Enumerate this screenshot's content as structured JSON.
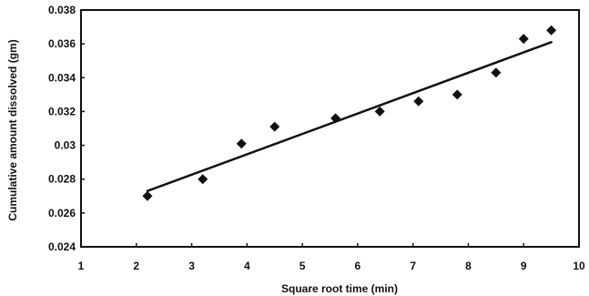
{
  "chart_data": {
    "type": "scatter",
    "xlabel": "Square root time (min)",
    "ylabel": "Cumulative amount dissolved (gm)",
    "xlim": [
      1,
      10
    ],
    "ylim": [
      0.024,
      0.038
    ],
    "xticks": [
      {
        "value": 1,
        "label": "1"
      },
      {
        "value": 2,
        "label": "2"
      },
      {
        "value": 3,
        "label": "3"
      },
      {
        "value": 4,
        "label": "4"
      },
      {
        "value": 5,
        "label": "5"
      },
      {
        "value": 6,
        "label": "6"
      },
      {
        "value": 7,
        "label": "7"
      },
      {
        "value": 8,
        "label": "8"
      },
      {
        "value": 9,
        "label": "9"
      },
      {
        "value": 10,
        "label": "10"
      }
    ],
    "yticks": [
      {
        "value": 0.024,
        "label": "0.024"
      },
      {
        "value": 0.026,
        "label": "0.026"
      },
      {
        "value": 0.028,
        "label": "0.028"
      },
      {
        "value": 0.03,
        "label": "0.03"
      },
      {
        "value": 0.032,
        "label": "0.032"
      },
      {
        "value": 0.034,
        "label": "0.034"
      },
      {
        "value": 0.036,
        "label": "0.036"
      },
      {
        "value": 0.038,
        "label": "0.038"
      }
    ],
    "series": [
      {
        "x": [
          2.2,
          3.2,
          3.9,
          4.5,
          5.6,
          6.4,
          7.1,
          7.8,
          8.5,
          9.0,
          9.5
        ],
        "y": [
          0.027,
          0.028,
          0.0301,
          0.0311,
          0.0316,
          0.032,
          0.0326,
          0.033,
          0.0343,
          0.0363,
          0.0368
        ]
      }
    ],
    "trendline": {
      "x": [
        2.2,
        9.5
      ],
      "y": [
        0.0273,
        0.0361
      ]
    },
    "grid": false,
    "legend": "none",
    "colors": {
      "marker": "#111111",
      "line": "#111111",
      "axis": "#111111",
      "background": "#ffffff"
    }
  }
}
